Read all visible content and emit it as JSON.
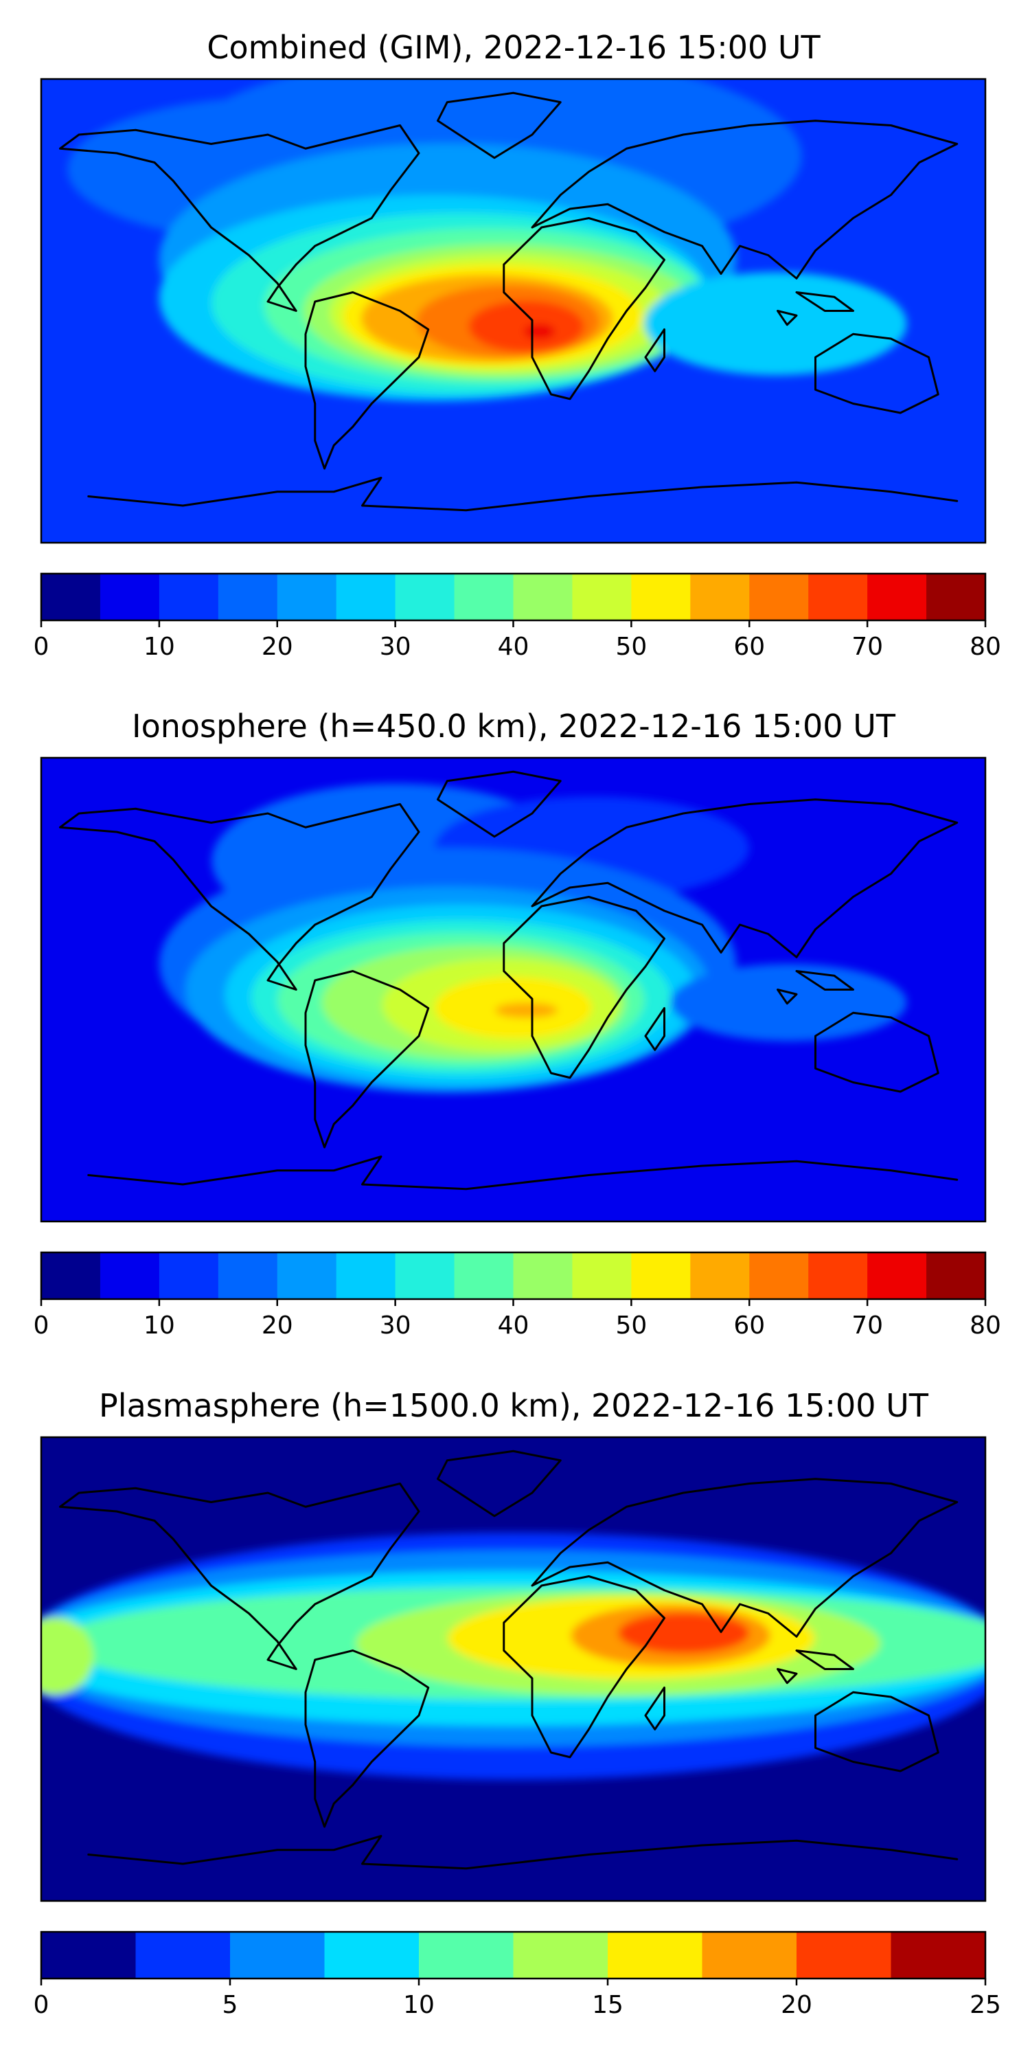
{
  "panels": [
    {
      "title": "Combined (GIM), 2022-12-16 15:00 UT",
      "colorbar": {
        "ticks": [
          "0",
          "10",
          "20",
          "30",
          "40",
          "50",
          "60",
          "70",
          "80"
        ],
        "range": [
          0,
          80
        ],
        "step": 5,
        "colors": [
          "#00008f",
          "#0000ee",
          "#0033ff",
          "#0066ff",
          "#0099ff",
          "#00ccff",
          "#22f0dd",
          "#55ffaa",
          "#99ff66",
          "#ccff33",
          "#ffee00",
          "#ffaa00",
          "#ff7700",
          "#ff3d00",
          "#ee0000",
          "#990000"
        ]
      },
      "map_data": {
        "background_level": 2,
        "blobs": [
          {
            "lon": -10,
            "lat": 60,
            "rlon": 120,
            "rlat": 40,
            "level": 3
          },
          {
            "lon": -90,
            "lat": 55,
            "rlon": 80,
            "rlat": 28,
            "level": 3
          },
          {
            "lon": -25,
            "lat": 20,
            "rlon": 110,
            "rlat": 45,
            "level": 4
          },
          {
            "lon": -30,
            "lat": 5,
            "rlon": 105,
            "rlat": 40,
            "level": 5
          },
          {
            "lon": -20,
            "lat": 3,
            "rlon": 95,
            "rlat": 35,
            "level": 6
          },
          {
            "lon": -10,
            "lat": 2,
            "rlon": 85,
            "rlat": 30,
            "level": 7
          },
          {
            "lon": -5,
            "lat": 0,
            "rlon": 75,
            "rlat": 26,
            "level": 8
          },
          {
            "lon": -5,
            "lat": -1,
            "rlon": 65,
            "rlat": 23,
            "level": 9
          },
          {
            "lon": -8,
            "lat": -2,
            "rlon": 57,
            "rlat": 20,
            "level": 10
          },
          {
            "lon": -10,
            "lat": -3,
            "rlon": 48,
            "rlat": 17,
            "level": 11
          },
          {
            "lon": -2,
            "lat": -4,
            "rlon": 35,
            "rlat": 14,
            "level": 12
          },
          {
            "lon": 5,
            "lat": -6,
            "rlon": 22,
            "rlat": 10,
            "level": 13
          },
          {
            "lon": 10,
            "lat": -8,
            "rlon": 6,
            "rlat": 3,
            "level": 14
          },
          {
            "lon": 100,
            "lat": -5,
            "rlon": 50,
            "rlat": 20,
            "level": 5
          }
        ]
      }
    },
    {
      "title": "Ionosphere  (h=450.0 km), 2022-12-16 15:00 UT",
      "colorbar": {
        "ticks": [
          "0",
          "10",
          "20",
          "30",
          "40",
          "50",
          "60",
          "70",
          "80"
        ],
        "range": [
          0,
          80
        ],
        "step": 5,
        "colors": [
          "#00008f",
          "#0000ee",
          "#0033ff",
          "#0066ff",
          "#0099ff",
          "#00ccff",
          "#22f0dd",
          "#55ffaa",
          "#99ff66",
          "#ccff33",
          "#ffee00",
          "#ffaa00",
          "#ff7700",
          "#ff3d00",
          "#ee0000",
          "#990000"
        ]
      },
      "map_data": {
        "background_level": 1,
        "blobs": [
          {
            "lon": -45,
            "lat": 50,
            "rlon": 70,
            "rlat": 30,
            "level": 3
          },
          {
            "lon": 30,
            "lat": 55,
            "rlon": 60,
            "rlat": 20,
            "level": 2
          },
          {
            "lon": -25,
            "lat": 10,
            "rlon": 110,
            "rlat": 45,
            "level": 3
          },
          {
            "lon": -25,
            "lat": 0,
            "rlon": 100,
            "rlat": 40,
            "level": 4
          },
          {
            "lon": -20,
            "lat": -2,
            "rlon": 90,
            "rlat": 35,
            "level": 5
          },
          {
            "lon": -20,
            "lat": -3,
            "rlon": 80,
            "rlat": 30,
            "level": 6
          },
          {
            "lon": -20,
            "lat": -4,
            "rlon": 70,
            "rlat": 26,
            "level": 7
          },
          {
            "lon": -15,
            "lat": -5,
            "rlon": 58,
            "rlat": 22,
            "level": 8
          },
          {
            "lon": -5,
            "lat": -6,
            "rlon": 45,
            "rlat": 18,
            "level": 9
          },
          {
            "lon": 0,
            "lat": -7,
            "rlon": 30,
            "rlat": 12,
            "level": 10
          },
          {
            "lon": 5,
            "lat": -8,
            "rlon": 12,
            "rlat": 3,
            "level": 11
          },
          {
            "lon": 105,
            "lat": -5,
            "rlon": 45,
            "rlat": 15,
            "level": 3
          }
        ]
      }
    },
    {
      "title": "Plasmasphere (h=1500.0 km), 2022-12-16 15:00 UT",
      "colorbar": {
        "ticks": [
          "0",
          "5",
          "10",
          "15",
          "20",
          "25"
        ],
        "range": [
          0,
          25
        ],
        "step": 2.5,
        "colors": [
          "#00008f",
          "#0033ff",
          "#0088ff",
          "#00ddff",
          "#55ffaa",
          "#aaff55",
          "#ffee00",
          "#ff9900",
          "#ff3d00",
          "#aa0000"
        ]
      },
      "map_data": {
        "background_level": 0,
        "blobs": [
          {
            "lon": 0,
            "lat": 5,
            "rlon": 190,
            "rlat": 48,
            "level": 1
          },
          {
            "lon": 0,
            "lat": 8,
            "rlon": 190,
            "rlat": 38,
            "level": 2
          },
          {
            "lon": 0,
            "lat": 8,
            "rlon": 190,
            "rlat": 30,
            "level": 3
          },
          {
            "lon": 10,
            "lat": 10,
            "rlon": 185,
            "rlat": 22,
            "level": 4
          },
          {
            "lon": 40,
            "lat": 10,
            "rlon": 100,
            "rlat": 20,
            "level": 5
          },
          {
            "lon": 45,
            "lat": 12,
            "rlon": 70,
            "rlat": 16,
            "level": 6
          },
          {
            "lon": 60,
            "lat": 13,
            "rlon": 38,
            "rlat": 12,
            "level": 7
          },
          {
            "lon": 65,
            "lat": 14,
            "rlon": 25,
            "rlat": 8,
            "level": 8
          },
          {
            "lon": -175,
            "lat": 5,
            "rlon": 15,
            "rlat": 15,
            "level": 5
          }
        ]
      }
    }
  ]
}
